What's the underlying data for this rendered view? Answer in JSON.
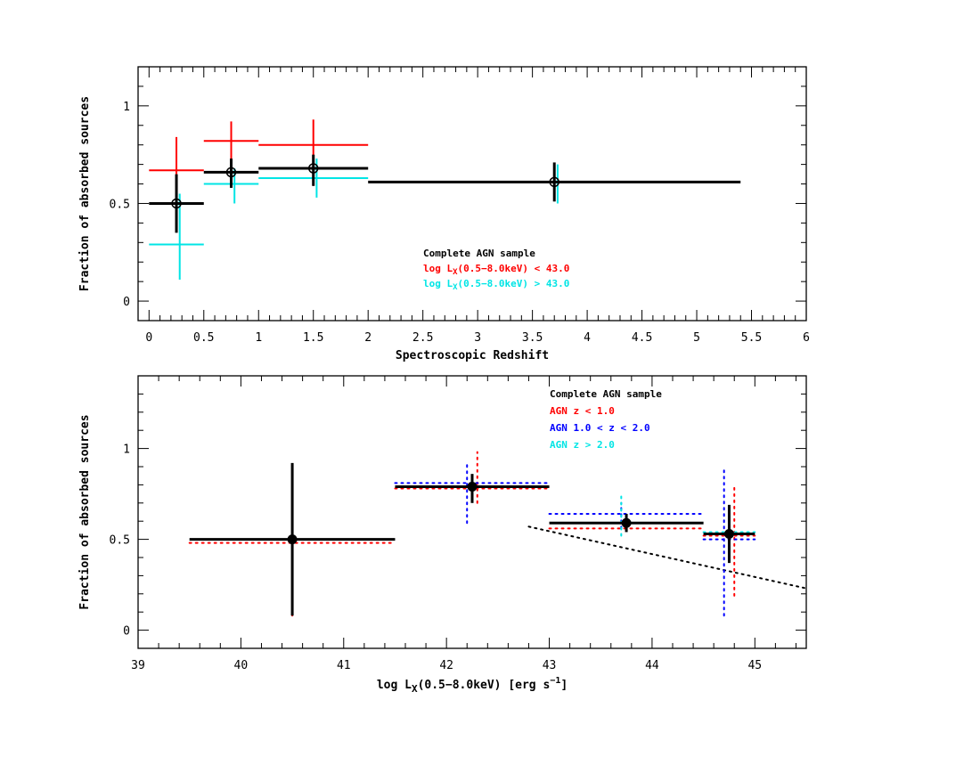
{
  "chart_data": [
    {
      "type": "scatter",
      "name": "top",
      "xlabel": "Spectroscopic Redshift",
      "ylabel": "Fraction of absorbed sources",
      "xlim": [
        -0.1,
        6
      ],
      "ylim": [
        -0.1,
        1.2
      ],
      "xticks": [
        0,
        0.5,
        1,
        1.5,
        2,
        2.5,
        3,
        3.5,
        4,
        4.5,
        5,
        5.5,
        6
      ],
      "xtick_labels": [
        "0",
        "0.5",
        "1",
        "1.5",
        "2",
        "2.5",
        "3",
        "3.5",
        "4",
        "4.5",
        "5",
        "5.5",
        "6"
      ],
      "yticks": [
        0,
        0.5,
        1
      ],
      "ytick_labels": [
        "0",
        "0.5",
        "1"
      ],
      "legend": {
        "placement": "center",
        "entries": [
          {
            "label": "Complete AGN sample",
            "color": "#000000",
            "subscript": ""
          },
          {
            "label": "log L",
            "subscript": "X",
            "suffix": "(0.5−8.0keV) < 43.0",
            "color": "#ff0000"
          },
          {
            "label": "log L",
            "subscript": "X",
            "suffix": "(0.5−8.0keV) > 43.0",
            "color": "#00e5e5"
          }
        ]
      },
      "series": [
        {
          "color": "#ff0000",
          "style": "solid",
          "marker": "none",
          "points": [
            {
              "x": 0.25,
              "xerr": [
                0.25,
                0.25
              ],
              "y": 0.67,
              "yerr": [
                0.22,
                0.17
              ]
            },
            {
              "x": 0.75,
              "xerr": [
                0.25,
                0.25
              ],
              "y": 0.82,
              "yerr": [
                0.23,
                0.1
              ]
            },
            {
              "x": 1.5,
              "xerr": [
                0.5,
                0.5
              ],
              "y": 0.8,
              "yerr": [
                0.21,
                0.13
              ]
            }
          ]
        },
        {
          "color": "#00e5e5",
          "style": "solid",
          "marker": "none",
          "points": [
            {
              "x": 0.28,
              "xerr": [
                0.28,
                0.22
              ],
              "y": 0.29,
              "yerr": [
                0.18,
                0.26
              ]
            },
            {
              "x": 0.78,
              "xerr": [
                0.28,
                0.22
              ],
              "y": 0.6,
              "yerr": [
                0.1,
                0.08
              ]
            },
            {
              "x": 1.53,
              "xerr": [
                0.53,
                0.47
              ],
              "y": 0.63,
              "yerr": [
                0.1,
                0.1
              ]
            },
            {
              "x": 3.73,
              "xerr": [
                0,
                0
              ],
              "y": 0.61,
              "yerr": [
                0.11,
                0.09
              ]
            }
          ]
        },
        {
          "color": "#000000",
          "style": "solid",
          "marker": "open-circle",
          "points": [
            {
              "x": 0.25,
              "xerr": [
                0.25,
                0.25
              ],
              "y": 0.5,
              "yerr": [
                0.15,
                0.15
              ]
            },
            {
              "x": 0.75,
              "xerr": [
                0.25,
                0.25
              ],
              "y": 0.66,
              "yerr": [
                0.08,
                0.07
              ]
            },
            {
              "x": 1.5,
              "xerr": [
                0.5,
                0.5
              ],
              "y": 0.68,
              "yerr": [
                0.09,
                0.07
              ]
            },
            {
              "x": 3.7,
              "xerr": [
                1.7,
                1.7
              ],
              "y": 0.61,
              "yerr": [
                0.1,
                0.1
              ]
            }
          ]
        }
      ]
    },
    {
      "type": "scatter",
      "name": "bottom",
      "xlabel": "log L",
      "xlabel_sub": "X",
      "xlabel_suffix": "(0.5−8.0keV) [erg s",
      "xlabel_sup": "−1",
      "xlabel_end": "]",
      "ylabel": "Fraction of absorbed sources",
      "xlim": [
        39,
        45.5
      ],
      "ylim": [
        -0.1,
        1.4
      ],
      "xticks": [
        39,
        40,
        41,
        42,
        43,
        44,
        45
      ],
      "xtick_labels": [
        "39",
        "40",
        "41",
        "42",
        "43",
        "44",
        "45"
      ],
      "yticks": [
        0,
        0.5,
        1
      ],
      "ytick_labels": [
        "0",
        "0.5",
        "1"
      ],
      "legend": {
        "placement": "top-right",
        "entries": [
          {
            "label": "Complete AGN sample",
            "color": "#000000"
          },
          {
            "label": "AGN z < 1.0",
            "color": "#ff0000"
          },
          {
            "label": "AGN 1.0 < z < 2.0",
            "color": "#0000ff"
          },
          {
            "label": "AGN z > 2.0",
            "color": "#00e5e5"
          }
        ]
      },
      "series": [
        {
          "color": "#ff0000",
          "style": "dotted",
          "marker": "none",
          "points": [
            {
              "x": 40.5,
              "xerr": [
                1.0,
                1.0
              ],
              "y": 0.48,
              "yerr": [
                0.4,
                0.42
              ]
            },
            {
              "x": 42.3,
              "xerr": [
                0.8,
                0.7
              ],
              "y": 0.78,
              "yerr": [
                0.08,
                0.2
              ]
            },
            {
              "x": 43.78,
              "xerr": [
                0.78,
                0.72
              ],
              "y": 0.56,
              "yerr": [
                0.0,
                0.0
              ]
            },
            {
              "x": 44.8,
              "xerr": [
                0.3,
                0.2
              ],
              "y": 0.52,
              "yerr": [
                0.33,
                0.27
              ]
            }
          ]
        },
        {
          "color": "#0000ff",
          "style": "dotted",
          "marker": "none",
          "points": [
            {
              "x": 42.2,
              "xerr": [
                0.7,
                0.8
              ],
              "y": 0.81,
              "yerr": [
                0.22,
                0.11
              ]
            },
            {
              "x": 43.7,
              "xerr": [
                0.7,
                0.8
              ],
              "y": 0.64,
              "yerr": [
                0.08,
                0.06
              ]
            },
            {
              "x": 44.7,
              "xerr": [
                0.2,
                0.3
              ],
              "y": 0.5,
              "yerr": [
                0.42,
                0.4
              ]
            }
          ]
        },
        {
          "color": "#00e5e5",
          "style": "dotted",
          "marker": "none",
          "points": [
            {
              "x": 43.7,
              "xerr": [
                0.0,
                0.0
              ],
              "y": 0.62,
              "yerr": [
                0.1,
                0.12
              ]
            },
            {
              "x": 44.75,
              "xerr": [
                0.25,
                0.25
              ],
              "y": 0.54,
              "yerr": [
                0.0,
                0.0
              ]
            }
          ]
        },
        {
          "color": "#000000",
          "style": "solid",
          "marker": "filled-circle",
          "points": [
            {
              "x": 40.5,
              "xerr": [
                1.0,
                1.0
              ],
              "y": 0.5,
              "yerr": [
                0.42,
                0.42
              ]
            },
            {
              "x": 42.25,
              "xerr": [
                0.75,
                0.75
              ],
              "y": 0.79,
              "yerr": [
                0.09,
                0.07
              ]
            },
            {
              "x": 43.75,
              "xerr": [
                0.75,
                0.75
              ],
              "y": 0.59,
              "yerr": [
                0.05,
                0.05
              ]
            },
            {
              "x": 44.75,
              "xerr": [
                0.25,
                0.25
              ],
              "y": 0.53,
              "yerr": [
                0.16,
                0.16
              ]
            }
          ]
        }
      ],
      "trend_line": {
        "x": [
          42.8,
          45.5
        ],
        "y": [
          0.57,
          0.23
        ],
        "color": "#000000",
        "style": "dotted"
      }
    }
  ]
}
